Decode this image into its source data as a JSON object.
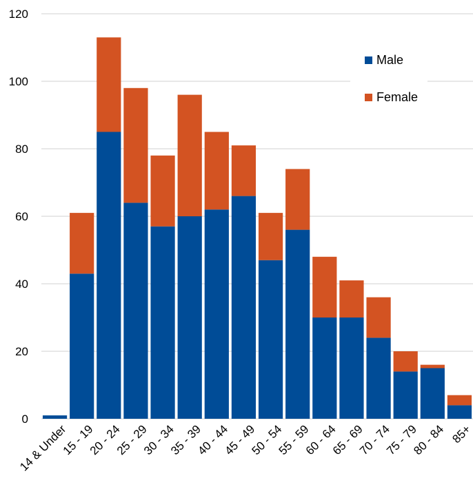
{
  "chart_data": {
    "type": "bar",
    "stacked": true,
    "title": "",
    "xlabel": "",
    "ylabel": "",
    "ylim": [
      0,
      120
    ],
    "yticks": [
      0,
      20,
      40,
      60,
      80,
      100,
      120
    ],
    "ytick_labels": [
      "0",
      "20",
      "40",
      "60",
      "80",
      "100",
      "120"
    ],
    "grid": "horizontal",
    "legend_position": "top-right",
    "categories": [
      "14 & Under",
      "15 - 19",
      "20 - 24",
      "25 - 29",
      "30 - 34",
      "35 - 39",
      "40 - 44",
      "45 - 49",
      "50 - 54",
      "55 - 59",
      "60 - 64",
      "65 - 69",
      "70 - 74",
      "75 - 79",
      "80 - 84",
      "85+"
    ],
    "series": [
      {
        "name": "Male",
        "color": "#004c97",
        "values": [
          1,
          43,
          85,
          64,
          57,
          60,
          62,
          66,
          47,
          56,
          30,
          30,
          24,
          14,
          15,
          4
        ]
      },
      {
        "name": "Female",
        "color": "#d35322",
        "values": [
          0,
          18,
          28,
          34,
          21,
          36,
          23,
          15,
          14,
          18,
          18,
          11,
          12,
          6,
          1,
          3
        ]
      }
    ]
  }
}
